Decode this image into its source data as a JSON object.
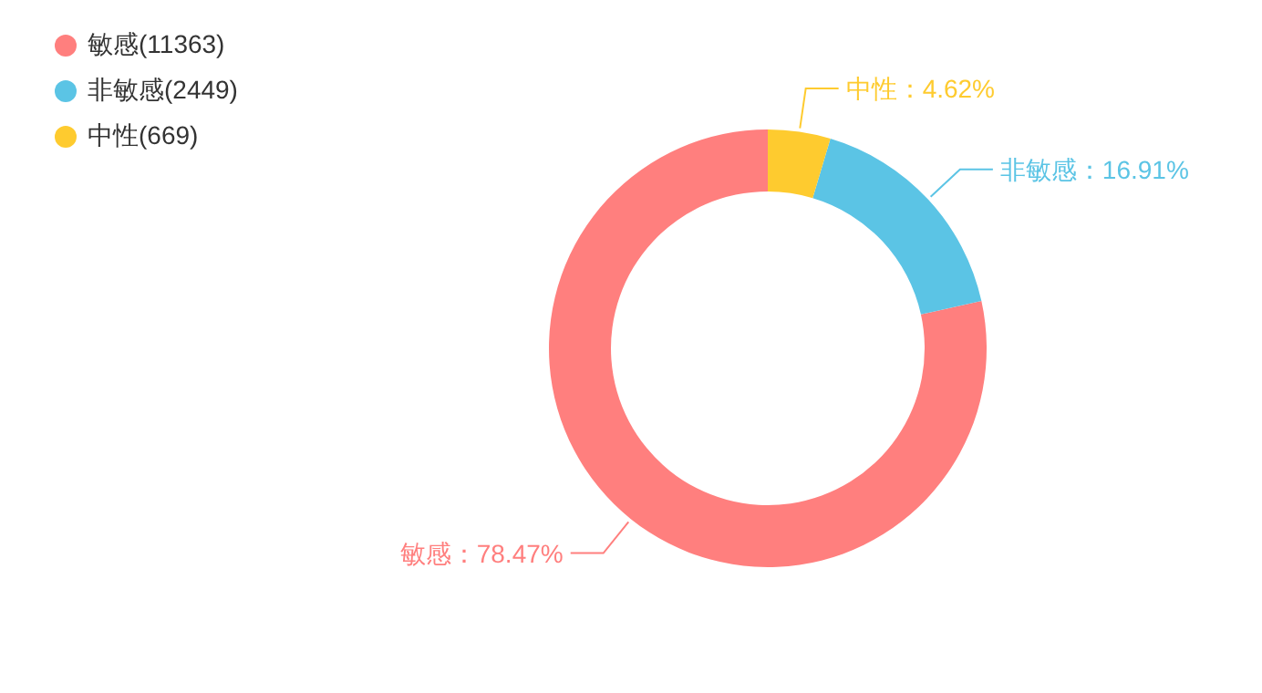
{
  "chart_data": {
    "type": "donut",
    "categories": [
      "敏感(11363)",
      "非敏感(2449)",
      "中性(669)"
    ],
    "values": [
      78.47,
      16.91,
      4.62
    ],
    "colors": [
      "#ff7f7e",
      "#5bc4e5",
      "#fecb2f"
    ],
    "value_labels": [
      "敏感：78.47%",
      "非敏感：16.91%",
      "中性：4.62%"
    ],
    "legend": "top left"
  }
}
